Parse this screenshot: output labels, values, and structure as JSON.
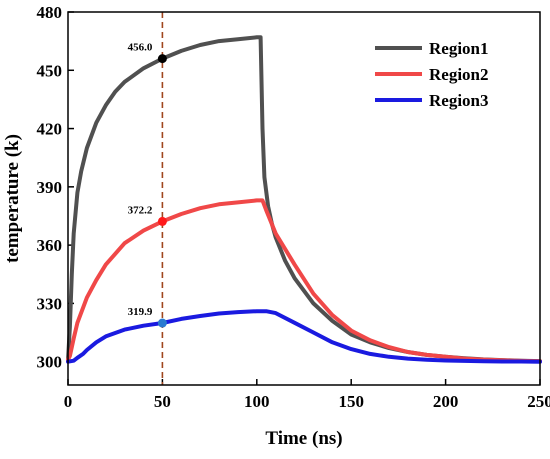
{
  "chart_data": {
    "type": "line",
    "title": "",
    "xlabel": "Time (ns)",
    "ylabel": "temperature (k)",
    "xlim": [
      0,
      250
    ],
    "ylim": [
      288,
      480
    ],
    "xticks": [
      0,
      50,
      100,
      150,
      200,
      250
    ],
    "yticks": [
      300,
      330,
      360,
      390,
      420,
      450,
      480
    ],
    "grid": false,
    "legend_position": "top-right",
    "marker_line": {
      "x": 50,
      "style": "dashed",
      "color": "#a0461e"
    },
    "series": [
      {
        "name": "Region1",
        "color": "#505050",
        "x": [
          0,
          1,
          2,
          3,
          5,
          7,
          10,
          15,
          20,
          25,
          30,
          40,
          50,
          60,
          70,
          80,
          90,
          100,
          102,
          103,
          104,
          106,
          108,
          110,
          115,
          120,
          130,
          140,
          150,
          160,
          170,
          180,
          190,
          200,
          210,
          220,
          230,
          240,
          250
        ],
        "values": [
          301,
          318,
          345,
          366,
          387,
          398,
          410,
          423,
          432,
          439,
          444,
          451,
          456,
          460,
          463,
          465,
          466,
          467,
          467,
          420,
          395,
          380,
          371,
          364,
          352,
          343,
          330,
          321,
          314,
          310,
          307,
          305,
          303.5,
          302.5,
          301.8,
          301.2,
          300.8,
          300.5,
          300.3
        ]
      },
      {
        "name": "Region2",
        "color": "#f04848",
        "x": [
          0,
          1,
          3,
          5,
          10,
          15,
          20,
          30,
          40,
          50,
          60,
          70,
          80,
          90,
          100,
          103,
          105,
          110,
          120,
          130,
          140,
          150,
          160,
          170,
          180,
          190,
          200,
          210,
          220,
          230,
          240,
          250
        ],
        "values": [
          301,
          303,
          312,
          320,
          333,
          342,
          350,
          361,
          367.5,
          372.2,
          376,
          379,
          381,
          382,
          383,
          383,
          378,
          366,
          350,
          335,
          324,
          316,
          311,
          307.5,
          305,
          303.5,
          302.5,
          301.6,
          301.1,
          300.7,
          300.4,
          300.2
        ]
      },
      {
        "name": "Region3",
        "color": "#1a1ae0",
        "x": [
          0,
          3,
          5,
          8,
          10,
          15,
          20,
          30,
          40,
          50,
          60,
          70,
          80,
          90,
          100,
          105,
          110,
          120,
          130,
          140,
          150,
          160,
          170,
          180,
          190,
          200,
          210,
          220,
          230,
          240,
          250
        ],
        "values": [
          300,
          300.5,
          302,
          304,
          306,
          310,
          313,
          316.5,
          318.5,
          319.9,
          322,
          323.5,
          324.8,
          325.5,
          326,
          326,
          325,
          320,
          315,
          310,
          306.5,
          304,
          302.5,
          301.6,
          301,
          300.6,
          300.4,
          300.2,
          300.1,
          300.1,
          300
        ]
      }
    ],
    "annotations": [
      {
        "x": 50,
        "y": 456.0,
        "label": "456.0",
        "color": "#000000"
      },
      {
        "x": 50,
        "y": 372.2,
        "label": "372.2",
        "color": "#ff1a1a"
      },
      {
        "x": 50,
        "y": 319.9,
        "label": "319.9",
        "color": "#2a7ad0"
      }
    ]
  }
}
